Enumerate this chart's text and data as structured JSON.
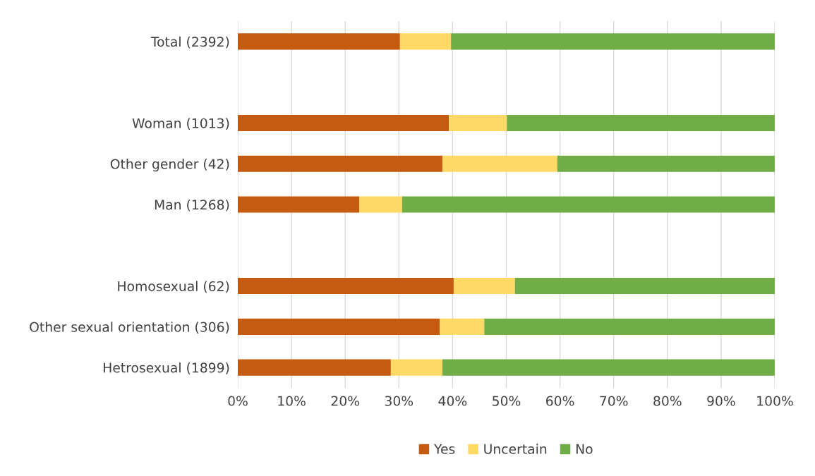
{
  "chart_data": {
    "type": "bar",
    "orientation": "horizontal",
    "stacked": true,
    "categories": [
      "Total (2392)",
      null,
      "Woman (1013)",
      "Other gender (42)",
      "Man (1268)",
      null,
      "Homosexual (62)",
      "Other sexual orientation (306)",
      "Hetrosexual (1899)"
    ],
    "series": [
      {
        "name": "Yes",
        "color": "#c55a11",
        "values": [
          30.2,
          null,
          39.3,
          38.1,
          22.6,
          null,
          40.2,
          37.6,
          28.5
        ]
      },
      {
        "name": "Uncertain",
        "color": "#ffd966",
        "values": [
          9.5,
          null,
          10.8,
          21.4,
          8.0,
          null,
          11.4,
          8.3,
          9.6
        ]
      },
      {
        "name": "No",
        "color": "#70ad47",
        "values": [
          60.3,
          null,
          49.9,
          40.5,
          69.4,
          null,
          48.4,
          54.1,
          61.9
        ]
      }
    ],
    "xlim": [
      0,
      100
    ],
    "xticks": [
      {
        "value": 0,
        "label": "0%"
      },
      {
        "value": 10,
        "label": "10%"
      },
      {
        "value": 20,
        "label": "20%"
      },
      {
        "value": 30,
        "label": "30%"
      },
      {
        "value": 40,
        "label": "40%"
      },
      {
        "value": 50,
        "label": "50%"
      },
      {
        "value": 60,
        "label": "60%"
      },
      {
        "value": 70,
        "label": "70%"
      },
      {
        "value": 80,
        "label": "80%"
      },
      {
        "value": 90,
        "label": "90%"
      },
      {
        "value": 100,
        "label": "100%"
      }
    ],
    "grid": "x",
    "legend": "bottom"
  }
}
